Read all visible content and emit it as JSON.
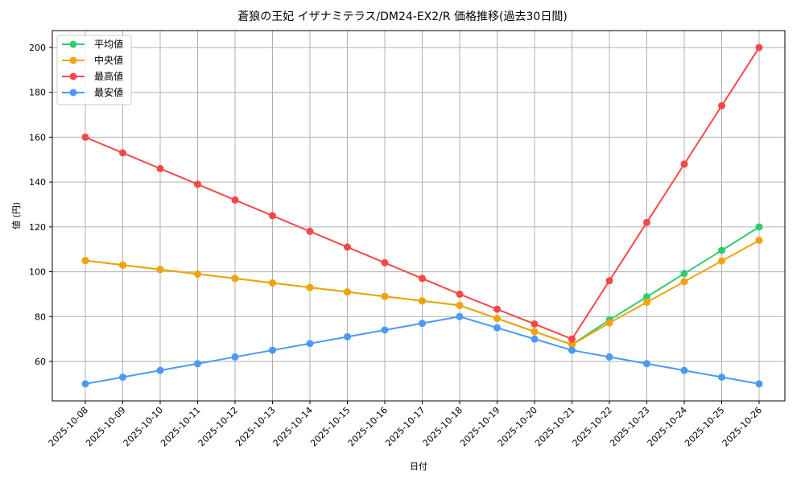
{
  "chart_data": {
    "type": "line",
    "title": "蒼狼の王妃 イザナミテラス/DM24-EX2/R 価格推移(過去30日間)",
    "xlabel": "日付",
    "ylabel": "値 (円)",
    "ylim": [
      42,
      207
    ],
    "yticks": [
      60,
      80,
      100,
      120,
      140,
      160,
      180,
      200
    ],
    "grid": true,
    "legend_position": "upper left",
    "x": [
      "2025-10-08",
      "2025-10-09",
      "2025-10-10",
      "2025-10-11",
      "2025-10-12",
      "2025-10-13",
      "2025-10-14",
      "2025-10-15",
      "2025-10-16",
      "2025-10-17",
      "2025-10-18",
      "2025-10-19",
      "2025-10-20",
      "2025-10-21",
      "2025-10-22",
      "2025-10-23",
      "2025-10-24",
      "2025-10-25",
      "2025-10-26"
    ],
    "series": [
      {
        "name": "平均値",
        "color": "#2ecc71",
        "values": [
          105,
          103,
          101,
          99,
          97,
          95,
          93,
          91,
          89,
          87,
          85,
          79.2,
          73.3,
          67.5,
          78.5,
          88.8,
          99.2,
          109.5,
          120
        ]
      },
      {
        "name": "中央値",
        "color": "#f5a30a",
        "values": [
          105,
          103,
          101,
          99,
          97,
          95,
          93,
          91,
          89,
          87,
          85,
          79.2,
          73.3,
          67.5,
          77.2,
          86.4,
          95.6,
          104.8,
          114
        ]
      },
      {
        "name": "最高値",
        "color": "#f54848",
        "values": [
          160,
          153,
          146,
          139,
          132,
          125,
          118,
          111,
          104,
          97,
          90,
          83.3,
          76.7,
          70,
          96,
          122,
          148,
          174,
          200
        ]
      },
      {
        "name": "最安値",
        "color": "#4a9af5",
        "values": [
          50,
          53,
          56,
          59,
          62,
          65,
          68,
          71,
          74,
          77,
          80,
          75,
          70,
          65,
          62,
          59,
          56,
          53,
          50
        ]
      }
    ]
  }
}
